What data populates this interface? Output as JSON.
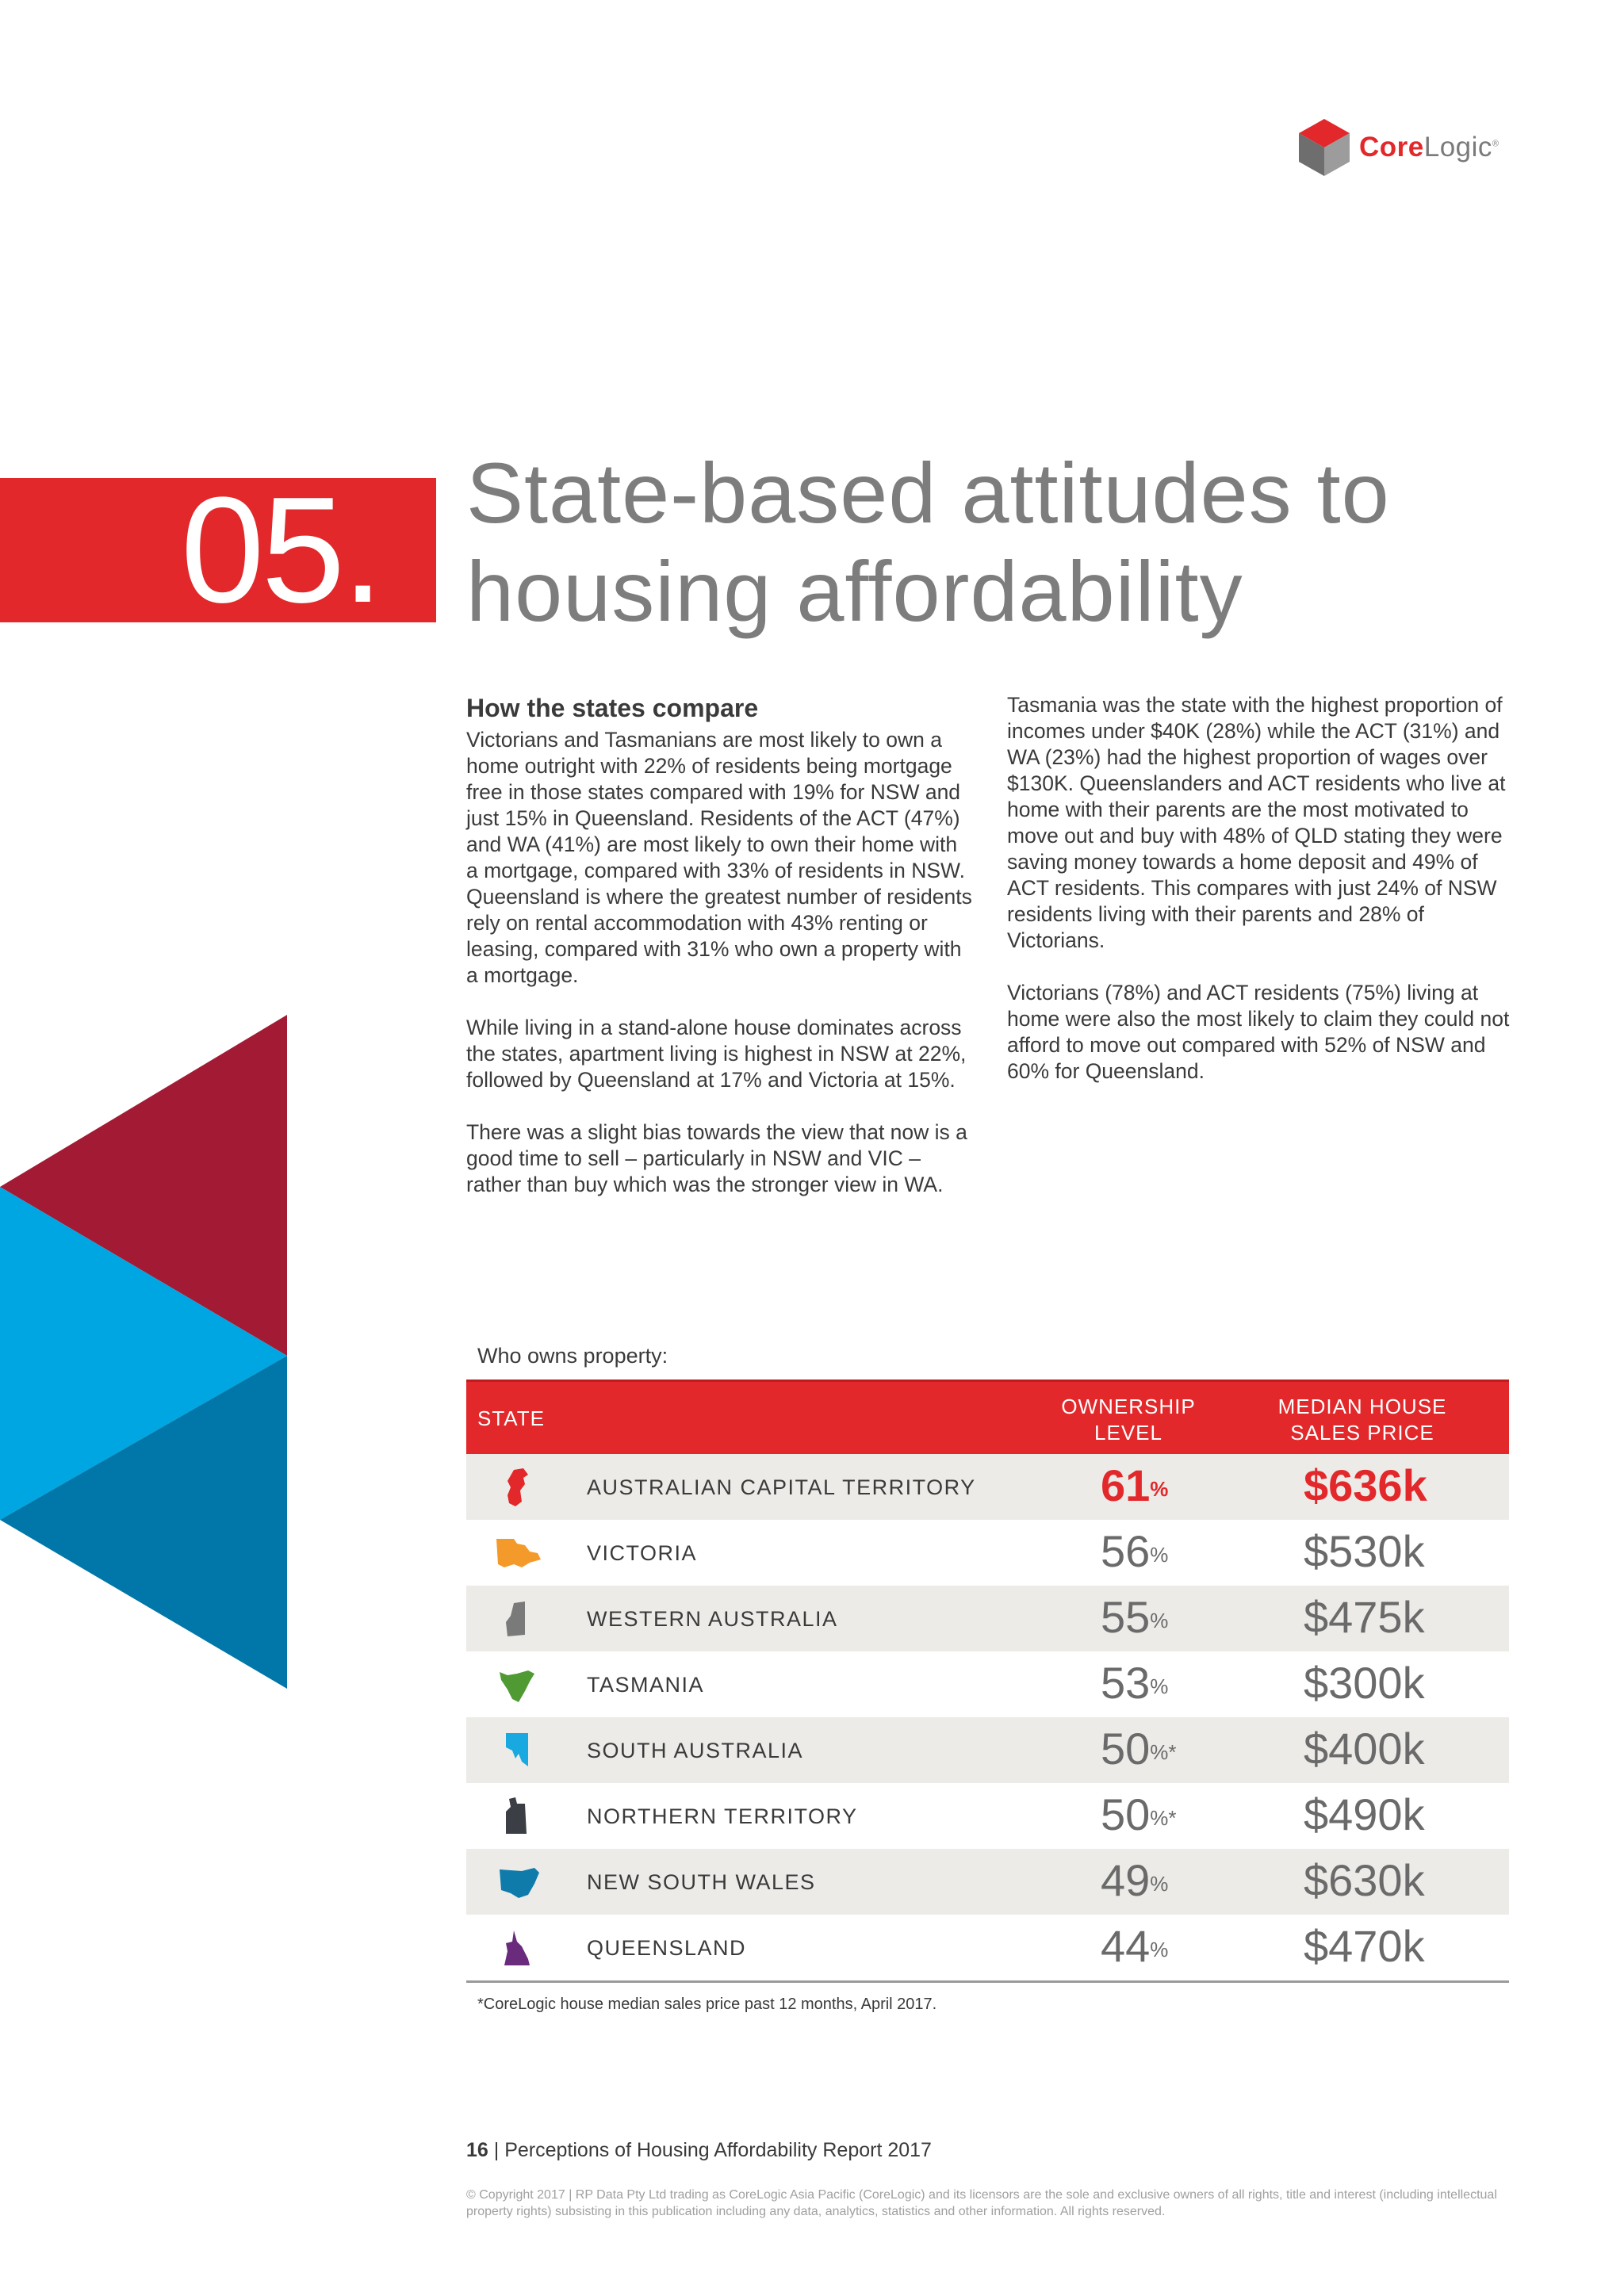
{
  "brand": {
    "logo_core": "Core",
    "logo_logic": "Logic",
    "logo_tm": "®",
    "colors": {
      "red": "#e2282a",
      "dark_red": "#a31a35",
      "light_blue": "#00a6e2",
      "dark_blue": "#0077a8",
      "grey": "#7d7d7d"
    }
  },
  "section": {
    "number": "05.",
    "title_line1": "State-based attitudes to",
    "title_line2": "housing affordability"
  },
  "body": {
    "heading": "How the states compare",
    "col1": [
      "Victorians and Tasmanians are most likely to own a home outright with 22% of residents being mortgage free in those states compared with 19% for NSW and just 15% in Queensland. Residents of the ACT (47%) and WA (41%) are most likely to own their home with a mortgage, compared with 33% of residents in NSW. Queensland is where the greatest number of residents rely on rental accommodation with 43% renting or leasing, compared with 31% who own a property with a mortgage.",
      "While living in a stand-alone house dominates across the states, apartment living is highest in NSW at 22%, followed by Queensland at 17% and Victoria at 15%.",
      "There was a slight bias towards the view that now is a good time to sell – particularly in NSW and VIC – rather than buy which was the stronger view in WA."
    ],
    "col2": [
      "Tasmania was the state with the highest proportion of incomes under $40K (28%) while the ACT (31%) and WA (23%) had the highest proportion of wages over $130K. Queenslanders and ACT residents who live at home with their parents are the most motivated to move out and buy with 48% of QLD stating they were saving money towards a home deposit and 49% of ACT residents. This compares with just 24% of NSW residents living with their parents and 28% of Victorians.",
      "Victorians (78%) and ACT residents (75%) living at home were also the most likely to claim they could not afford to move out compared with 52% of NSW and 60% for Queensland."
    ]
  },
  "table": {
    "title": "Who owns property:",
    "headers": {
      "state": "STATE",
      "ownership_line1": "OWNERSHIP",
      "ownership_line2": "LEVEL",
      "price_line1": "MEDIAN HOUSE",
      "price_line2": "SALES PRICE"
    },
    "rows": [
      {
        "state": "AUSTRALIAN CAPITAL TERRITORY",
        "ownership": "61",
        "suffix": "%",
        "price": "$636k",
        "icon": "act-map-icon",
        "color": "#e2282a"
      },
      {
        "state": "VICTORIA",
        "ownership": "56",
        "suffix": "%",
        "price": "$530k",
        "icon": "victoria-map-icon",
        "color": "#f39a2b"
      },
      {
        "state": "WESTERN AUSTRALIA",
        "ownership": "55",
        "suffix": "%",
        "price": "$475k",
        "icon": "wa-map-icon",
        "color": "#7a7a7a"
      },
      {
        "state": "TASMANIA",
        "ownership": "53",
        "suffix": "%",
        "price": "$300k",
        "icon": "tasmania-map-icon",
        "color": "#4f9a32"
      },
      {
        "state": "SOUTH AUSTRALIA",
        "ownership": "50",
        "suffix": "%*",
        "price": "$400k",
        "icon": "sa-map-icon",
        "color": "#19a9e1"
      },
      {
        "state": "NORTHERN TERRITORY",
        "ownership": "50",
        "suffix": "%*",
        "price": "$490k",
        "icon": "nt-map-icon",
        "color": "#3b3f45"
      },
      {
        "state": "NEW SOUTH WALES",
        "ownership": "49",
        "suffix": "%",
        "price": "$630k",
        "icon": "nsw-map-icon",
        "color": "#0e7bab"
      },
      {
        "state": "QUEENSLAND",
        "ownership": "44",
        "suffix": "%",
        "price": "$470k",
        "icon": "qld-map-icon",
        "color": "#6a2b7d"
      }
    ],
    "footnote": "*CoreLogic house median sales price past 12 months, April 2017."
  },
  "footer": {
    "page_number": "16",
    "separator": " | ",
    "report_title": "Perceptions of Housing Affordability Report 2017",
    "copyright": "© Copyright 2017 | RP Data Pty Ltd trading as CoreLogic Asia Pacific (CoreLogic) and its licensors are the sole and exclusive owners of all rights, title and interest (including intellectual property rights) subsisting in this publication including any data, analytics, statistics and other information. All rights reserved."
  }
}
